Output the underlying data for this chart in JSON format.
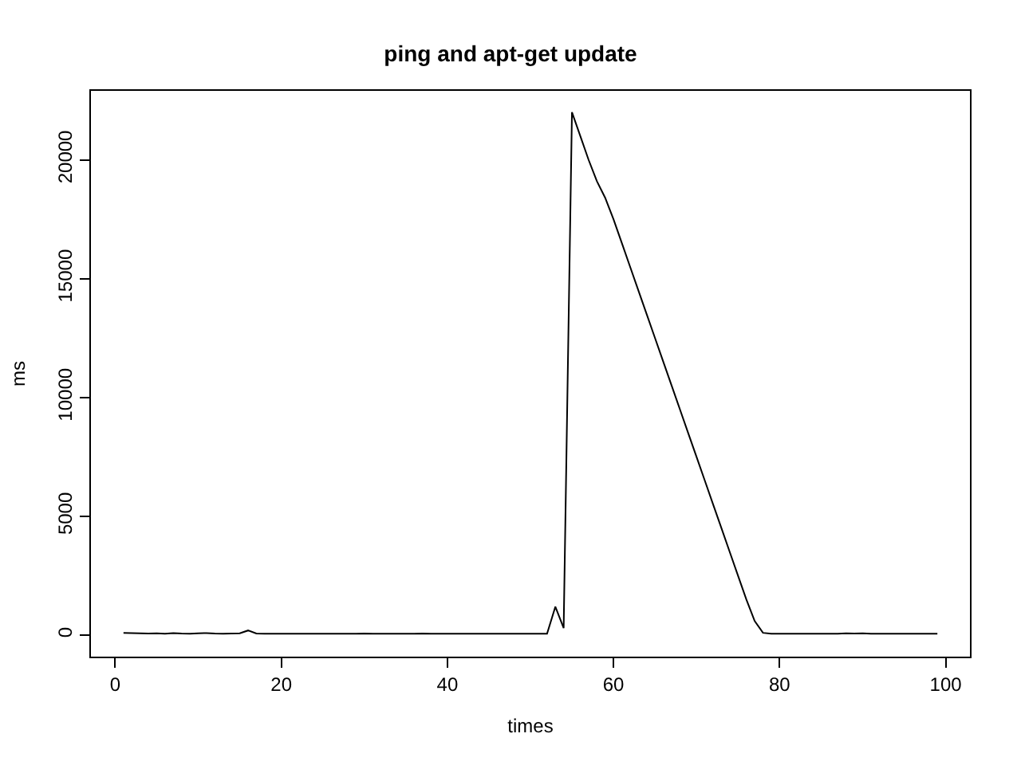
{
  "chart_data": {
    "type": "line",
    "title": "ping and apt-get update",
    "xlabel": "times",
    "ylabel": "ms",
    "x": [
      1,
      2,
      3,
      4,
      5,
      6,
      7,
      8,
      9,
      10,
      11,
      12,
      13,
      14,
      15,
      16,
      17,
      18,
      19,
      20,
      21,
      22,
      23,
      24,
      25,
      26,
      27,
      28,
      29,
      30,
      31,
      32,
      33,
      34,
      35,
      36,
      37,
      38,
      39,
      40,
      41,
      42,
      43,
      44,
      45,
      46,
      47,
      48,
      49,
      50,
      51,
      52,
      53,
      54,
      55,
      56,
      57,
      58,
      59,
      60,
      61,
      62,
      63,
      64,
      65,
      66,
      67,
      68,
      69,
      70,
      71,
      72,
      73,
      74,
      75,
      76,
      77,
      78,
      79,
      80,
      81,
      82,
      83,
      84,
      85,
      86,
      87,
      88,
      89,
      90,
      91,
      92,
      93,
      94,
      95,
      96,
      97,
      98,
      99
    ],
    "series": [
      {
        "color": "#000000",
        "values": [
          100,
          90,
          80,
          70,
          80,
          60,
          90,
          70,
          60,
          80,
          90,
          70,
          60,
          70,
          80,
          200,
          70,
          60,
          60,
          60,
          60,
          60,
          60,
          60,
          60,
          60,
          60,
          60,
          60,
          70,
          60,
          60,
          60,
          60,
          60,
          60,
          70,
          60,
          60,
          60,
          60,
          60,
          60,
          60,
          60,
          60,
          60,
          60,
          60,
          60,
          60,
          60,
          1200,
          300,
          22000,
          21000,
          20000,
          19100,
          18400,
          17500,
          16500,
          15500,
          14500,
          13500,
          12500,
          11500,
          10500,
          9500,
          8500,
          7500,
          6500,
          5500,
          4500,
          3500,
          2500,
          1500,
          600,
          100,
          60,
          60,
          60,
          60,
          60,
          60,
          60,
          60,
          60,
          80,
          70,
          80,
          60,
          60,
          60,
          60,
          60,
          60,
          60,
          60,
          60
        ]
      }
    ],
    "xlim": [
      -2.92,
      102.92
    ],
    "ylim": [
      -900,
      22900
    ],
    "xticks": [
      0,
      20,
      40,
      60,
      80,
      100
    ],
    "yticks": [
      0,
      5000,
      10000,
      15000,
      20000
    ],
    "marker": "none",
    "line_style": "solid"
  }
}
